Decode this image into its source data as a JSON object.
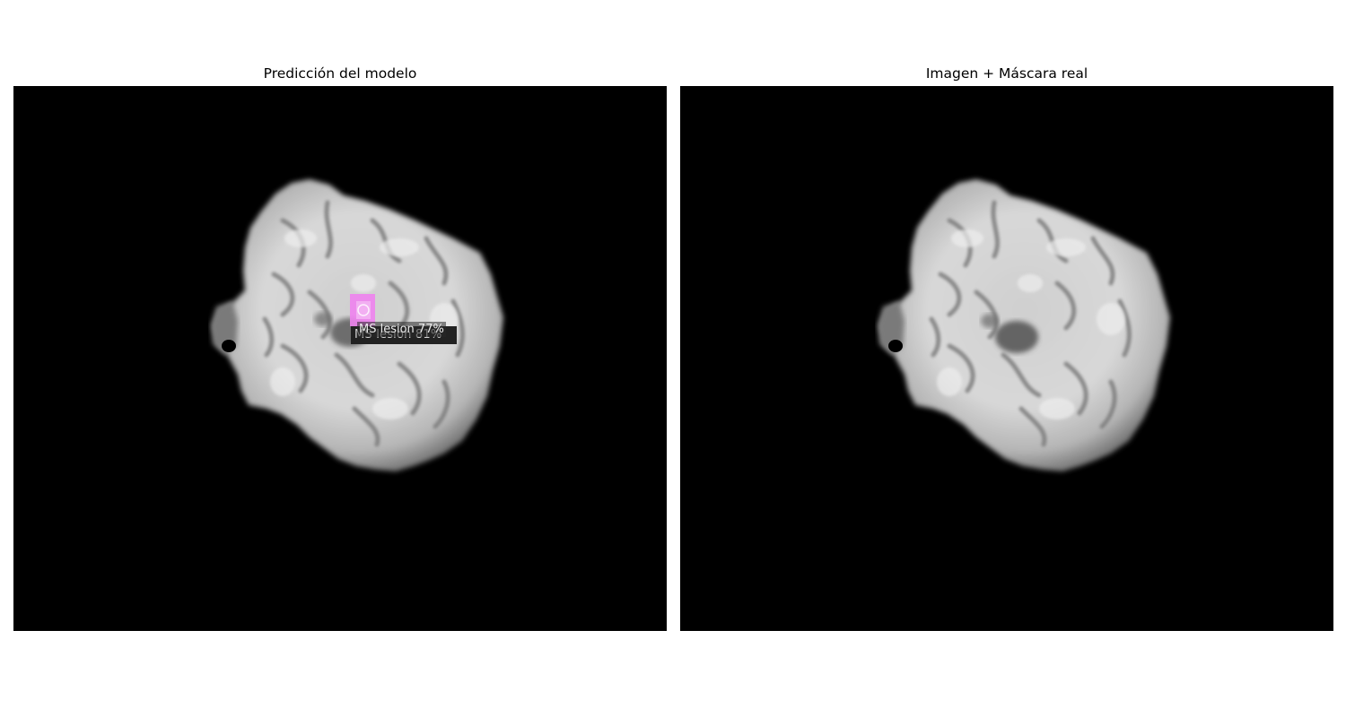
{
  "panels": {
    "left": {
      "title": "Predicción del modelo",
      "detections": [
        {
          "label": "MS lesion 77%",
          "color": "#ee82ee"
        },
        {
          "label": "MS lesion 81%",
          "color": "#ee82ee"
        }
      ]
    },
    "right": {
      "title": "Imagen + Máscara real"
    }
  },
  "colors": {
    "background": "#ffffff",
    "image_background": "#000000",
    "mask": "#ee82ee"
  }
}
